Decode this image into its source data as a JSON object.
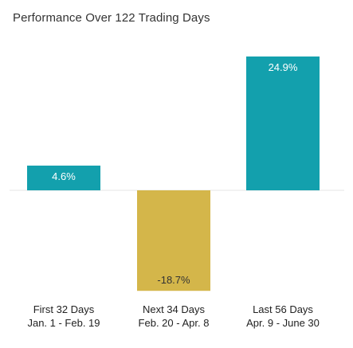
{
  "chart_data": {
    "type": "bar",
    "title": "Performance Over 122 Trading Days",
    "categories": [
      {
        "line1": "First 32 Days",
        "line2": "Jan. 1 - Feb. 19"
      },
      {
        "line1": "Next 34 Days",
        "line2": "Feb. 20 - Apr. 8"
      },
      {
        "line1": "Last 56 Days",
        "line2": "Apr. 9 - June 30"
      }
    ],
    "values": [
      4.6,
      -18.7,
      24.9
    ],
    "value_labels": [
      "4.6%",
      "-18.7%",
      "24.9%"
    ],
    "colors": [
      "#13a0ad",
      "#d4b64a",
      "#13a0ad"
    ],
    "baseline_color": "#e6e6e6",
    "xlabel": "",
    "ylabel": "",
    "grid": false
  }
}
